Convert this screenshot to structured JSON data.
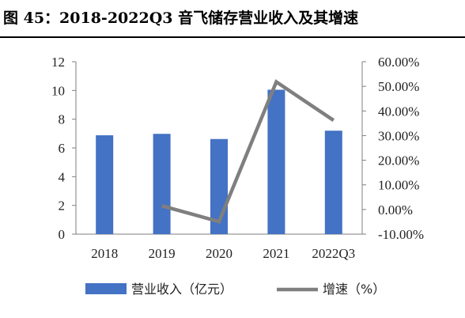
{
  "title": "图 45：2018-2022Q3 音飞储存营业收入及其增速",
  "chart_data": {
    "type": "bar",
    "categories": [
      "2018",
      "2019",
      "2020",
      "2021",
      "2022Q3"
    ],
    "series": [
      {
        "name": "营业收入（亿元）",
        "type": "bar",
        "axis": "left",
        "values": [
          6.88,
          6.98,
          6.62,
          10.05,
          7.2
        ]
      },
      {
        "name": "增速（%）",
        "type": "line",
        "axis": "right",
        "values": [
          null,
          1.5,
          -4.9,
          51.8,
          36.2
        ]
      }
    ],
    "left_axis": {
      "ylim": [
        0,
        12
      ],
      "ticks": [
        "0",
        "2",
        "4",
        "6",
        "8",
        "10",
        "12"
      ]
    },
    "right_axis": {
      "ylim": [
        -10,
        60
      ],
      "ticks": [
        "-10.00%",
        "0.00%",
        "10.00%",
        "20.00%",
        "30.00%",
        "40.00%",
        "50.00%",
        "60.00%"
      ]
    },
    "colors": {
      "bar": "#4472C4",
      "line": "#7F7F7F"
    },
    "legend_position": "bottom",
    "grid": false
  }
}
